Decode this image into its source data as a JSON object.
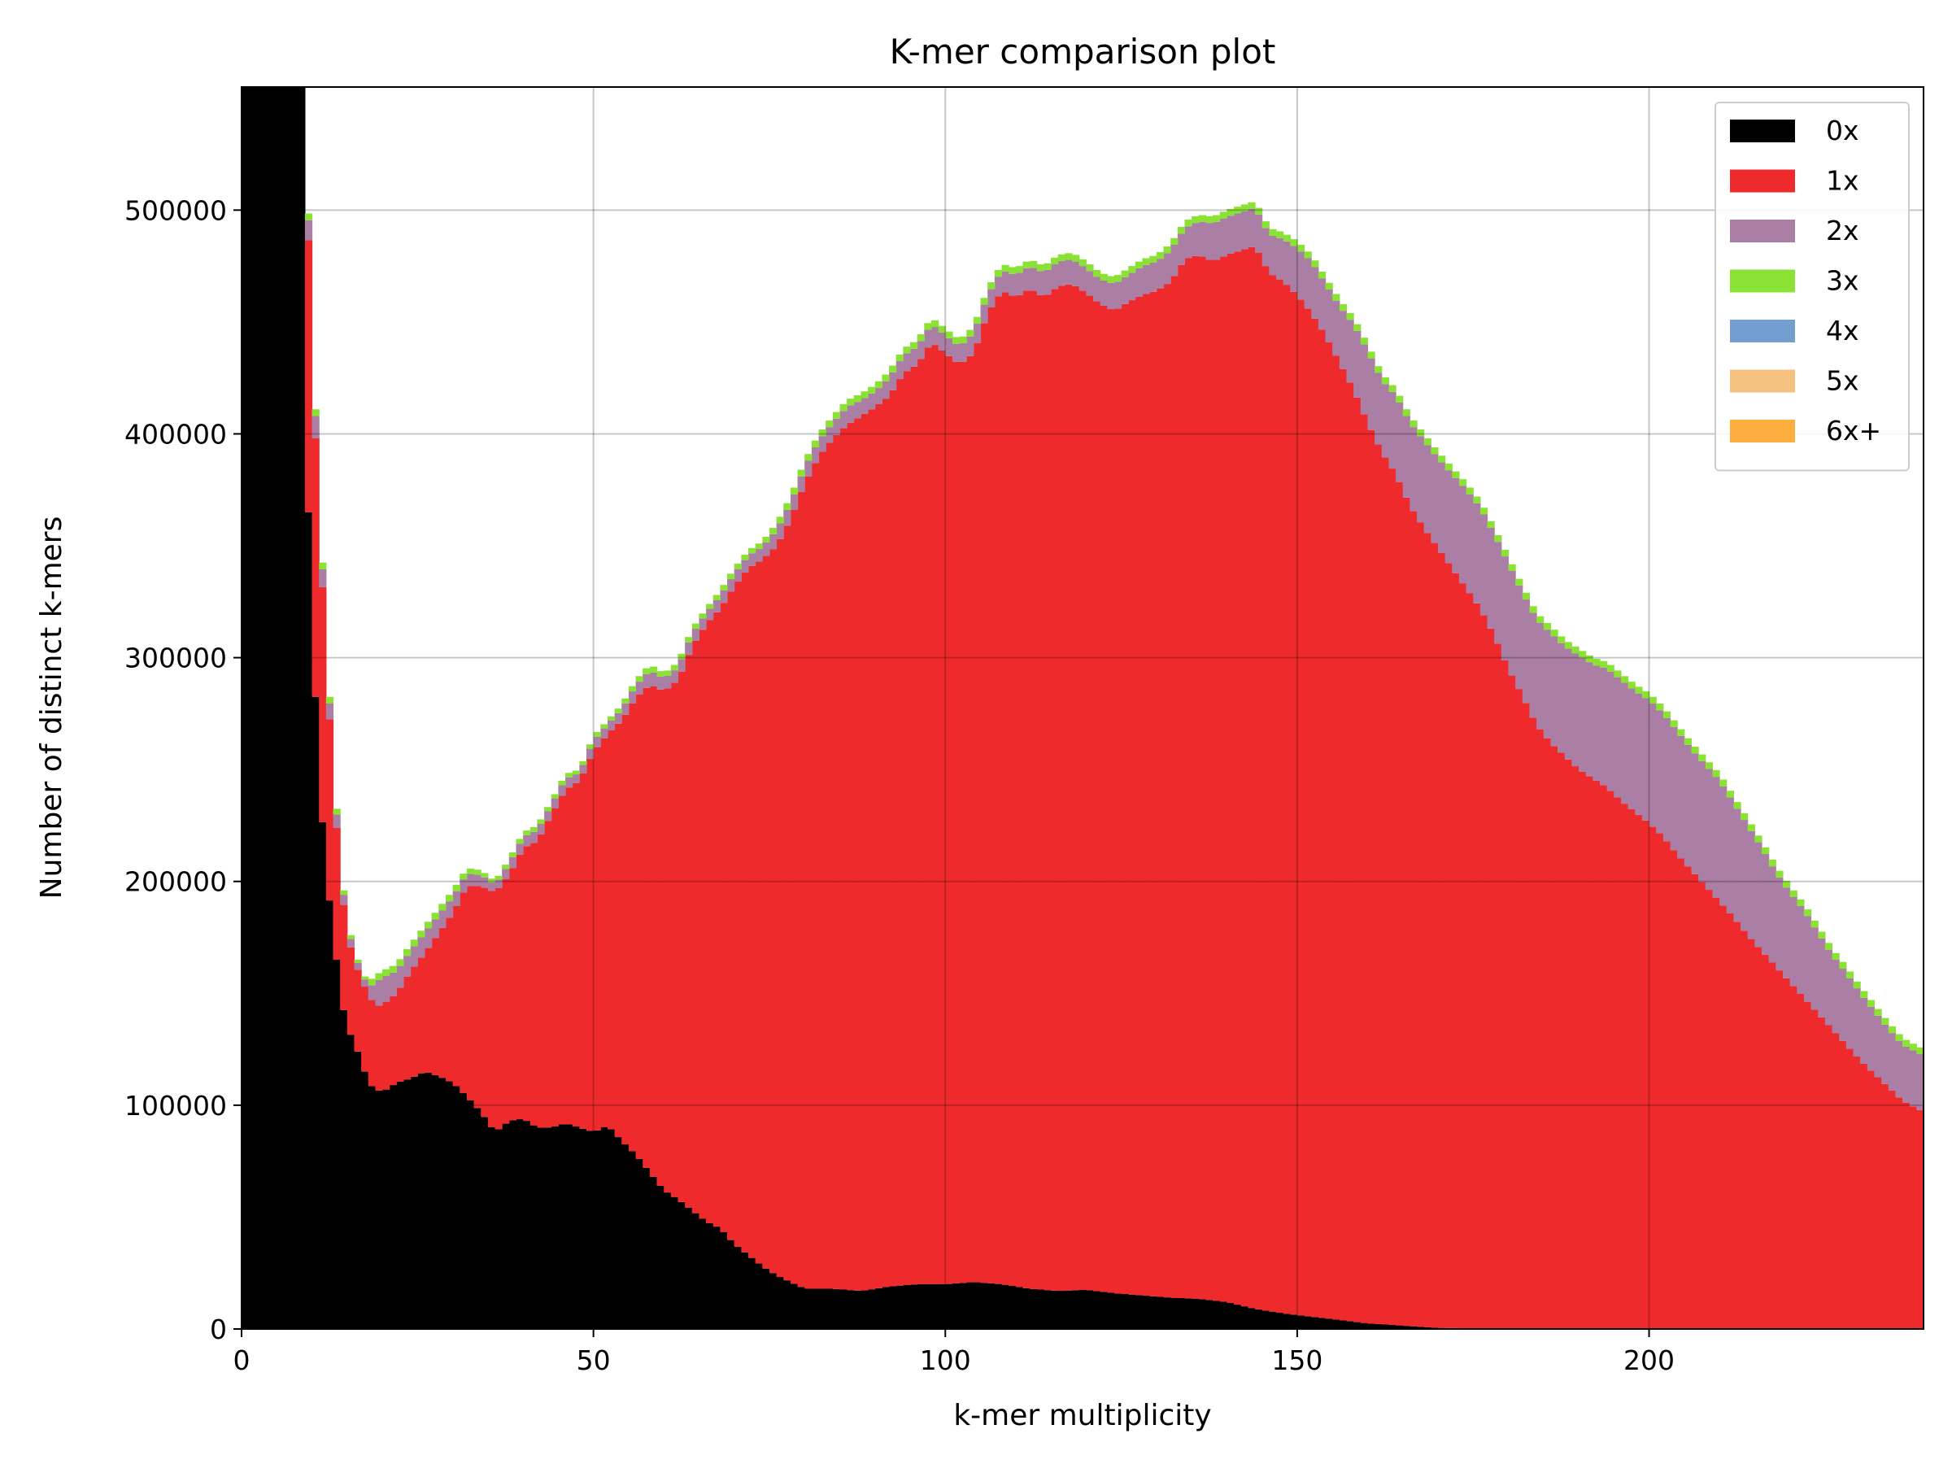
{
  "chart_data": {
    "type": "bar",
    "stacked": true,
    "title": "K-mer comparison plot",
    "xlabel": "k-mer multiplicity",
    "ylabel": "Number of distinct k-mers",
    "xlim": [
      0,
      239
    ],
    "ylim": [
      0,
      555000
    ],
    "xticks": [
      0,
      50,
      100,
      150,
      200
    ],
    "yticks": [
      0,
      100000,
      200000,
      300000,
      400000,
      500000
    ],
    "grid": true,
    "legend": "top-right",
    "series": [
      {
        "name": "0x",
        "color": "#000000"
      },
      {
        "name": "1x",
        "color": "#ef2a2c"
      },
      {
        "name": "2x",
        "color": "#ab7fa5"
      },
      {
        "name": "3x",
        "color": "#8ae234"
      },
      {
        "name": "4x",
        "color": "#729fcf"
      },
      {
        "name": "5x",
        "color": "#f5c17f"
      },
      {
        "name": "6x+",
        "color": "#fcaf3e"
      }
    ],
    "profiles": {
      "0x": [
        [
          0,
          8000
        ],
        [
          1,
          2000000
        ],
        [
          7,
          2000000
        ],
        [
          8,
          800000
        ],
        [
          9,
          415000
        ],
        [
          10,
          315000
        ],
        [
          11,
          250000
        ],
        [
          12,
          203000
        ],
        [
          13,
          180000
        ],
        [
          14,
          150000
        ],
        [
          15,
          135000
        ],
        [
          16,
          128000
        ],
        [
          17,
          120000
        ],
        [
          18,
          110000
        ],
        [
          19,
          107000
        ],
        [
          20,
          106000
        ],
        [
          22,
          110000
        ],
        [
          24,
          112000
        ],
        [
          26,
          115000
        ],
        [
          28,
          113000
        ],
        [
          30,
          110000
        ],
        [
          32,
          104000
        ],
        [
          34,
          97000
        ],
        [
          36,
          88000
        ],
        [
          38,
          93000
        ],
        [
          40,
          94000
        ],
        [
          42,
          90000
        ],
        [
          44,
          90000
        ],
        [
          46,
          92000
        ],
        [
          48,
          90000
        ],
        [
          50,
          88000
        ],
        [
          52,
          91000
        ],
        [
          54,
          84000
        ],
        [
          56,
          78000
        ],
        [
          58,
          70000
        ],
        [
          60,
          62000
        ],
        [
          62,
          58000
        ],
        [
          64,
          53000
        ],
        [
          66,
          48000
        ],
        [
          68,
          45000
        ],
        [
          70,
          38000
        ],
        [
          72,
          33000
        ],
        [
          74,
          28000
        ],
        [
          76,
          24000
        ],
        [
          78,
          21000
        ],
        [
          80,
          18000
        ],
        [
          84,
          18000
        ],
        [
          88,
          17000
        ],
        [
          92,
          19000
        ],
        [
          96,
          20000
        ],
        [
          100,
          20000
        ],
        [
          104,
          21000
        ],
        [
          108,
          20000
        ],
        [
          112,
          18000
        ],
        [
          116,
          17000
        ],
        [
          120,
          17500
        ],
        [
          124,
          16000
        ],
        [
          128,
          15000
        ],
        [
          132,
          14000
        ],
        [
          136,
          13500
        ],
        [
          140,
          12000
        ],
        [
          144,
          9000
        ],
        [
          148,
          7000
        ],
        [
          152,
          5500
        ],
        [
          156,
          4000
        ],
        [
          160,
          2500
        ],
        [
          165,
          1500
        ],
        [
          170,
          500
        ],
        [
          180,
          100
        ],
        [
          239,
          0
        ]
      ],
      "total": [
        [
          0,
          8000
        ],
        [
          1,
          2000000
        ],
        [
          8,
          2000000
        ],
        [
          9,
          550000
        ],
        [
          10,
          447000
        ],
        [
          11,
          375000
        ],
        [
          12,
          310000
        ],
        [
          13,
          255000
        ],
        [
          14,
          210000
        ],
        [
          15,
          182000
        ],
        [
          16,
          170000
        ],
        [
          17,
          160000
        ],
        [
          18,
          155000
        ],
        [
          19,
          158000
        ],
        [
          20,
          160000
        ],
        [
          22,
          163000
        ],
        [
          24,
          172000
        ],
        [
          26,
          180000
        ],
        [
          28,
          188000
        ],
        [
          30,
          196000
        ],
        [
          32,
          206000
        ],
        [
          34,
          205000
        ],
        [
          36,
          200000
        ],
        [
          38,
          210000
        ],
        [
          40,
          222000
        ],
        [
          42,
          225000
        ],
        [
          44,
          236000
        ],
        [
          46,
          248000
        ],
        [
          48,
          250000
        ],
        [
          50,
          265000
        ],
        [
          52,
          272000
        ],
        [
          54,
          279000
        ],
        [
          56,
          290000
        ],
        [
          58,
          297000
        ],
        [
          60,
          293000
        ],
        [
          62,
          298000
        ],
        [
          64,
          313000
        ],
        [
          66,
          322000
        ],
        [
          68,
          330000
        ],
        [
          70,
          340000
        ],
        [
          72,
          348000
        ],
        [
          74,
          352000
        ],
        [
          76,
          360000
        ],
        [
          78,
          372000
        ],
        [
          80,
          388000
        ],
        [
          82,
          400000
        ],
        [
          84,
          408000
        ],
        [
          86,
          415000
        ],
        [
          88,
          418000
        ],
        [
          90,
          422000
        ],
        [
          92,
          428000
        ],
        [
          94,
          438000
        ],
        [
          96,
          442000
        ],
        [
          98,
          452000
        ],
        [
          100,
          447000
        ],
        [
          102,
          442000
        ],
        [
          104,
          448000
        ],
        [
          106,
          465000
        ],
        [
          108,
          476000
        ],
        [
          110,
          474000
        ],
        [
          112,
          478000
        ],
        [
          114,
          475000
        ],
        [
          116,
          480000
        ],
        [
          118,
          481000
        ],
        [
          120,
          477000
        ],
        [
          122,
          472000
        ],
        [
          124,
          470000
        ],
        [
          126,
          474000
        ],
        [
          128,
          478000
        ],
        [
          130,
          480000
        ],
        [
          132,
          485000
        ],
        [
          134,
          495000
        ],
        [
          136,
          498000
        ],
        [
          138,
          497000
        ],
        [
          140,
          500000
        ],
        [
          142,
          502000
        ],
        [
          144,
          504000
        ],
        [
          146,
          492000
        ],
        [
          148,
          490000
        ],
        [
          150,
          486000
        ],
        [
          152,
          480000
        ],
        [
          154,
          470000
        ],
        [
          156,
          460000
        ],
        [
          158,
          452000
        ],
        [
          160,
          440000
        ],
        [
          162,
          427000
        ],
        [
          164,
          420000
        ],
        [
          166,
          408000
        ],
        [
          168,
          400000
        ],
        [
          170,
          392000
        ],
        [
          172,
          385000
        ],
        [
          174,
          378000
        ],
        [
          176,
          370000
        ],
        [
          178,
          358000
        ],
        [
          180,
          345000
        ],
        [
          182,
          332000
        ],
        [
          184,
          320000
        ],
        [
          186,
          314000
        ],
        [
          188,
          308000
        ],
        [
          190,
          304000
        ],
        [
          192,
          300000
        ],
        [
          194,
          298000
        ],
        [
          196,
          293000
        ],
        [
          198,
          288000
        ],
        [
          200,
          284000
        ],
        [
          202,
          278000
        ],
        [
          204,
          270000
        ],
        [
          206,
          262000
        ],
        [
          208,
          255000
        ],
        [
          210,
          248000
        ],
        [
          212,
          238000
        ],
        [
          214,
          228000
        ],
        [
          216,
          218000
        ],
        [
          218,
          207000
        ],
        [
          220,
          198000
        ],
        [
          222,
          190000
        ],
        [
          224,
          180000
        ],
        [
          226,
          170000
        ],
        [
          228,
          162000
        ],
        [
          230,
          153000
        ],
        [
          232,
          145000
        ],
        [
          234,
          137000
        ],
        [
          236,
          130000
        ],
        [
          239,
          125000
        ]
      ],
      "upto1x": [
        [
          0,
          8000
        ],
        [
          1,
          2000000
        ],
        [
          8,
          2000000
        ],
        [
          9,
          540000
        ],
        [
          10,
          433000
        ],
        [
          11,
          363000
        ],
        [
          12,
          300000
        ],
        [
          13,
          245000
        ],
        [
          14,
          203000
        ],
        [
          15,
          176000
        ],
        [
          16,
          165000
        ],
        [
          17,
          156000
        ],
        [
          18,
          150000
        ],
        [
          19,
          144000
        ],
        [
          20,
          145000
        ],
        [
          22,
          150000
        ],
        [
          24,
          160000
        ],
        [
          26,
          168000
        ],
        [
          28,
          177000
        ],
        [
          30,
          186000
        ],
        [
          32,
          198000
        ],
        [
          34,
          198000
        ],
        [
          36,
          195000
        ],
        [
          38,
          203000
        ],
        [
          40,
          215000
        ],
        [
          42,
          218000
        ],
        [
          44,
          230000
        ],
        [
          46,
          241000
        ],
        [
          48,
          245000
        ],
        [
          50,
          258000
        ],
        [
          52,
          266000
        ],
        [
          54,
          272000
        ],
        [
          56,
          282000
        ],
        [
          58,
          288000
        ],
        [
          60,
          285000
        ],
        [
          62,
          290000
        ],
        [
          64,
          305000
        ],
        [
          66,
          315000
        ],
        [
          68,
          322000
        ],
        [
          70,
          332000
        ],
        [
          72,
          340000
        ],
        [
          74,
          344000
        ],
        [
          76,
          350000
        ],
        [
          78,
          362000
        ],
        [
          80,
          378000
        ],
        [
          82,
          390000
        ],
        [
          84,
          398000
        ],
        [
          86,
          404000
        ],
        [
          88,
          408000
        ],
        [
          90,
          412000
        ],
        [
          92,
          417000
        ],
        [
          94,
          427000
        ],
        [
          96,
          431000
        ],
        [
          98,
          441000
        ],
        [
          100,
          436000
        ],
        [
          102,
          431000
        ],
        [
          104,
          436000
        ],
        [
          106,
          454000
        ],
        [
          108,
          464000
        ],
        [
          110,
          461000
        ],
        [
          112,
          465000
        ],
        [
          114,
          461000
        ],
        [
          116,
          466000
        ],
        [
          118,
          467000
        ],
        [
          120,
          463000
        ],
        [
          122,
          458000
        ],
        [
          124,
          455000
        ],
        [
          126,
          459000
        ],
        [
          128,
          462000
        ],
        [
          130,
          464000
        ],
        [
          132,
          468000
        ],
        [
          134,
          478000
        ],
        [
          136,
          480000
        ],
        [
          138,
          477000
        ],
        [
          140,
          480000
        ],
        [
          142,
          482000
        ],
        [
          144,
          484000
        ],
        [
          146,
          472000
        ],
        [
          148,
          468000
        ],
        [
          150,
          462000
        ],
        [
          152,
          454000
        ],
        [
          154,
          444000
        ],
        [
          156,
          432000
        ],
        [
          158,
          420000
        ],
        [
          160,
          405000
        ],
        [
          162,
          392000
        ],
        [
          164,
          382000
        ],
        [
          166,
          368000
        ],
        [
          168,
          358000
        ],
        [
          170,
          349000
        ],
        [
          172,
          340000
        ],
        [
          174,
          331000
        ],
        [
          176,
          322000
        ],
        [
          178,
          310000
        ],
        [
          180,
          295000
        ],
        [
          182,
          283000
        ],
        [
          184,
          270000
        ],
        [
          186,
          262000
        ],
        [
          188,
          256000
        ],
        [
          190,
          250000
        ],
        [
          192,
          246000
        ],
        [
          194,
          242000
        ],
        [
          196,
          236000
        ],
        [
          198,
          231000
        ],
        [
          200,
          226000
        ],
        [
          202,
          220000
        ],
        [
          204,
          212000
        ],
        [
          206,
          205000
        ],
        [
          208,
          198000
        ],
        [
          210,
          191000
        ],
        [
          212,
          184000
        ],
        [
          214,
          176000
        ],
        [
          216,
          169000
        ],
        [
          218,
          162000
        ],
        [
          220,
          155000
        ],
        [
          222,
          148000
        ],
        [
          224,
          141000
        ],
        [
          226,
          134000
        ],
        [
          228,
          127000
        ],
        [
          230,
          120000
        ],
        [
          232,
          114000
        ],
        [
          234,
          108000
        ],
        [
          236,
          102000
        ],
        [
          239,
          97000
        ]
      ]
    }
  }
}
